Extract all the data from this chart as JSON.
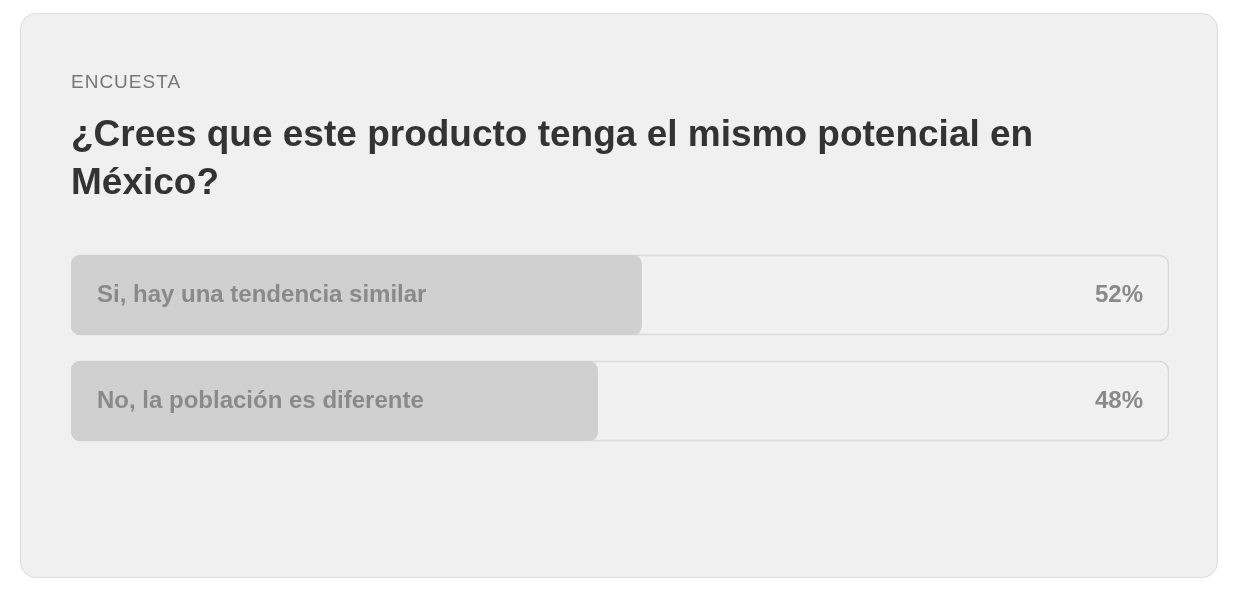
{
  "chart_data": {
    "type": "bar",
    "orientation": "horizontal",
    "subtitle": "ENCUESTA",
    "title": "¿Crees que este producto tenga el mismo potencial en México?",
    "categories": [
      "Si, hay una tendencia similar",
      "No, la población es diferente"
    ],
    "values": [
      52,
      48
    ],
    "value_labels": [
      "52%",
      "48%"
    ],
    "color": "#d0d0d0",
    "xlim": [
      0,
      100
    ]
  }
}
